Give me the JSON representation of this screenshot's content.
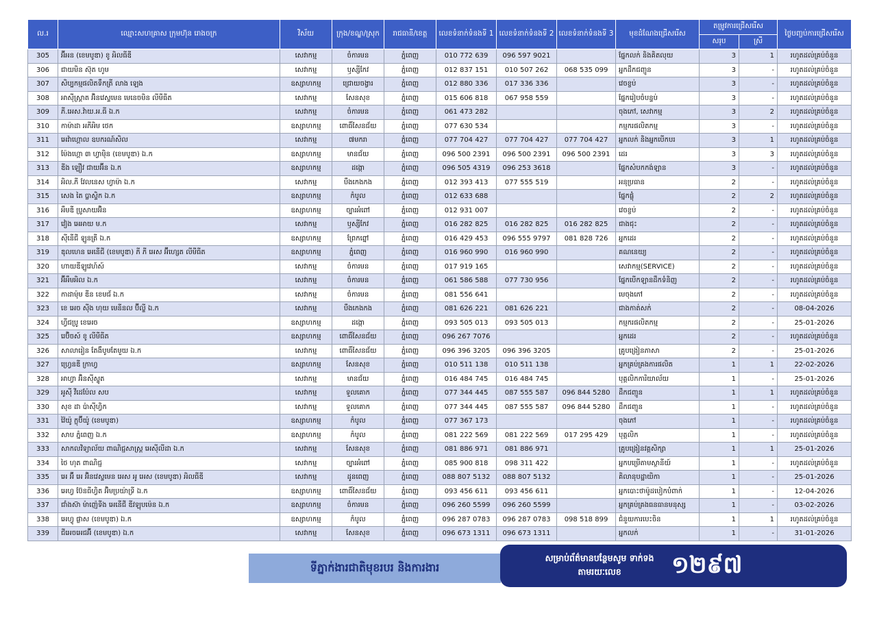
{
  "table": {
    "headers": {
      "no": "ល.រ",
      "name": "ឈ្មោះសហគ្រាស ក្រុមហ៊ុន រោងចក្រ",
      "sector": "វិស័យ",
      "district": "ក្រុង/ខណ្ឌ/ស្រុក",
      "province": "រាជធានី/ខេត្ត",
      "tel1": "លេខទំនាក់ទំនងទី 1",
      "tel2": "លេខទំនាក់ទំនងទី 2",
      "tel3": "លេខទំនាក់ទំនងទី 3",
      "position": "មុខដំណែងជ្រើសរើស",
      "demand": "តម្រូវការជ្រើសរើស",
      "total": "សរុប",
      "female": "ស្រី",
      "deadline": "ថ្ងៃបញ្ចប់ការជ្រើសរើស"
    },
    "rows": [
      [
        305,
        "អ៊ីអន (ខេមបូឌា) ខូ អិលធីឌី",
        "សេវាកម្ម",
        "ចំការមន",
        "ភ្នំពេញ",
        "010 772 639",
        "096 597 9021",
        null,
        "ផ្នែកលក់ និងគិតលុយ",
        3,
        1,
        "រហូតដល់គ្រប់ចំនួន"
      ],
      [
        306,
        "ជាយមិន ស៊ុត ហូម",
        "សេវាកម្ម",
        "ឫស្សីកែវ",
        "ភ្នំពេញ",
        "012 837 151",
        "010 507 262",
        "068 535 099",
        "អ្នកដឹកជញ្ជូន",
        3,
        "-",
        "រហូតដល់គ្រប់ចំនួន"
      ],
      [
        307,
        "សិប្បកម្មផលិតទឹកត្រី លាង ឡេង",
        "ឧស្សាហកម្ម",
        "ជ្រោយចង្វារ",
        "ភ្នំពេញ",
        "012 880 336",
        "017 336 336",
        null,
        "វេចខ្ចប់",
        3,
        "-",
        "រហូតដល់គ្រប់ចំនួន"
      ],
      [
        308,
        "អាស៊ីស្ត្រាត អ៊ិនវេស្ទមេន មេនេចមិន លីមីធីត",
        "សេវាកម្ម",
        "សែនសុខ",
        "ភ្នំពេញ",
        "015 606 818",
        "067 958 559",
        null,
        "ផ្នែករៀបចំបន្ទប់",
        3,
        "-",
        "រហូតដល់គ្រប់ចំនួន"
      ],
      [
        309,
        "ភី.អេស.វ៉ាយ.អ.ធី ឯ.ក",
        "សេវាកម្ម",
        "ចំការមន",
        "ភ្នំពេញ",
        "061 473 282",
        null,
        null,
        "ចុងភៅ, សេវាកម្ម",
        3,
        2,
        "រហូតដល់គ្រប់ចំនួន"
      ],
      [
        310,
        "កាម៉ាដា អភីអិម ថេក",
        "ឧស្សាហកម្ម",
        "ពោធិ៍សែនជ័យ",
        "ភ្នំពេញ",
        "077 630 534",
        null,
        null,
        "កម្មករផលិតកម្ម",
        3,
        "-",
        "រហូតដល់គ្រប់ចំនួន"
      ],
      [
        311,
        "អេវ៉ាហ្គោល ឧបករណ៍សិល",
        "សេវាកម្ម",
        "៧មករា",
        "ភ្នំពេញ",
        "077 704 427",
        "077 704 427",
        "077 704 427",
        "អ្នកលក់ និងអ្នកបើកបរ",
        3,
        1,
        "រហូតដល់គ្រប់ចំនួន"
      ],
      [
        312,
        "ម៉ែងហ្គោ ៣ ហ្វាម៉ិន (ខេមបូឌា) ឯ.ក",
        "ឧស្សាហកម្ម",
        "មានជ័យ",
        "ភ្នំពេញ",
        "096 500 2391",
        "096 500 2391",
        "096 500 2391",
        "ដេរ",
        3,
        3,
        "រហូតដល់គ្រប់ចំនួន"
      ],
      [
        313,
        "ឌីង ឡឿវ ជាយអ៊ីន ឯ.ក",
        "ឧស្សាហកម្ម",
        "ដង្កោ",
        "ភ្នំពេញ",
        "096 505 4319",
        "096 253 3618",
        null,
        "ផ្នែកសំបកកង់ឡាន",
        3,
        "-",
        "រហូតដល់គ្រប់ចំនួន"
      ],
      [
        314,
        "អិល.ភី វែលនេស ហ្វាម៉ា ឯ.ក",
        "សេវាកម្ម",
        "បឹងកេងកង",
        "ភ្នំពេញ",
        "012 393 413",
        "077 555 519",
        null,
        "អនុប្រធាន",
        2,
        "-",
        "រហូតដល់គ្រប់ចំនួន"
      ],
      [
        315,
        "សេង តៃ ប្លាស្ទិក ឯ.ក",
        "ឧស្សាហកម្ម",
        "កំបូល",
        "ភ្នំពេញ",
        "012 633 688",
        null,
        null,
        "ផ្នែកផ្លុំ",
        2,
        2,
        "រហូតដល់គ្រប់ចំនួន"
      ],
      [
        316,
        "អឹមឌី ប្រូសាយអ៊ិន",
        "ឧស្សាហកម្ម",
        "ច្បារអំពៅ",
        "ភ្នំពេញ",
        "012 931 007",
        null,
        null,
        "វេចខ្ចប់",
        2,
        "-",
        "រហូតដល់គ្រប់ចំនួន"
      ],
      [
        317,
        "វៀង អេអាយ ម.ក",
        "សេវាកម្ម",
        "ឫស្សីកែវ",
        "ភ្នំពេញ",
        "016 282 825",
        "016 282 825",
        "016 282 825",
        "ជាងជុះ",
        2,
        "-",
        "រហូតដល់គ្រប់ចំនួន"
      ],
      [
        318,
        "ស៊ីនើជី ឡូនត្រី ឯ.ក",
        "ឧស្សាហកម្ម",
        "ព្រែកព្នៅ",
        "ភ្នំពេញ",
        "016 429 453",
        "096 555 9797",
        "081 828 726",
        "អ្នកដេរ",
        2,
        "-",
        "រហូតដល់គ្រប់ចំនួន"
      ],
      [
        319,
        "ឌុលហេន អេនើជី (ខេមបូឌា) ភី ភី អេស អ៊ីហ្សេត លីមីធីត",
        "ឧស្សាហកម្ម",
        "ភ្នំពេញ",
        "ភ្នំពេញ",
        "016 960 990",
        "016 960 990",
        null,
        "គណនេយ្យ",
        2,
        "-",
        "រហូតដល់គ្រប់ចំនួន"
      ],
      [
        320,
        "ហាយឌីឡូវេហ៍ស៍",
        "សេវាកម្ម",
        "ចំការមន",
        "ភ្នំពេញ",
        "017 919 165",
        null,
        null,
        "សេវាកម្ម(SERVICE)",
        2,
        "-",
        "រហូតដល់គ្រប់ចំនួន"
      ],
      [
        321,
        "អ៊ីអឹមអិល ឯ.ក",
        "សេវាកម្ម",
        "ចំការមន",
        "ភ្នំពេញ",
        "061 586 588",
        "077 730 956",
        null,
        "ផ្នែកបើកឡានដឹកទំនិញ",
        2,
        "-",
        "រហូតដល់គ្រប់ចំនួន"
      ],
      [
        322,
        "កាដាម៉ុម ឌីន ខេមជ័ ឯ.ក",
        "សេវាកម្ម",
        "ចំការមន",
        "ភ្នំពេញ",
        "081 556 641",
        null,
        null,
        "មេចុងភៅ",
        2,
        "-",
        "រហូតដល់គ្រប់ចំនួន"
      ],
      [
        323,
        "ខេ អេច ស៊ីង ហុយ មេនីនល ប៊ីល្ឌី ឯ.ក",
        "សេវាកម្ម",
        "បឹងកេងកង",
        "ភ្នំពេញ",
        "081 626 221",
        "081 626 221",
        null,
        "ជាងកាត់សក់",
        2,
        "-",
        "08-04-2026"
      ],
      [
        324,
        "ហ្វីជប្រូ ខេអេច",
        "ឧស្សាហកម្ម",
        "ដង្កោ",
        "ភ្នំពេញ",
        "093 505 013",
        "093 505 013",
        null,
        "កម្មករផលិតកម្ម",
        2,
        "-",
        "25-01-2026"
      ],
      [
        325,
        "រេប៊ិចស៍ ខូ លីមីធីត",
        "ឧស្សាហកម្ម",
        "ពោធិ៍សែនជ័យ",
        "ភ្នំពេញ",
        "096 267 7076",
        null,
        null,
        "អ្នកដេរ",
        2,
        "-",
        "រហូតដល់គ្រប់ចំនួន"
      ],
      [
        326,
        "សាលារៀន តែងឹបូមតែមួយ ឯ.ក",
        "សេវាកម្ម",
        "ពោធិ៍សែនជ័យ",
        "ភ្នំពេញ",
        "096 396 3205",
        "096 396 3205",
        null,
        "គ្រូបង្រៀនភាសា",
        2,
        "-",
        "25-01-2026"
      ],
      [
        327,
        "ហ្វ្រេនឌី ក្រាហ្វ",
        "ឧស្សាហកម្ម",
        "សែនសុខ",
        "ភ្នំពេញ",
        "010 511 138",
        "010 511 138",
        null,
        "អ្នកគ្រប់គ្រងការផលិត",
        1,
        1,
        "22-02-2026"
      ],
      [
        328,
        "អាហ្វា អ៊ិនស៊ីស្ទូត",
        "សេវាកម្ម",
        "មានជ័យ",
        "ភ្នំពេញ",
        "016 484 745",
        "016 484 745",
        null,
        "បុគ្គលិកការិយាល័យ",
        1,
        "-",
        "25-01-2026"
      ],
      [
        329,
        "អូស៊ី វីដេប៉ែល សប",
        "សេវាកម្ម",
        "ទួលគោក",
        "ភ្នំពេញ",
        "077 344 445",
        "087 555 587",
        "096 844 5280",
        "ដឹកជញ្ជូន",
        1,
        1,
        "រហូតដល់គ្រប់ចំនួន"
      ],
      [
        330,
        "សុខ ដា ប៉ាស៊ីហ្វិក",
        "សេវាកម្ម",
        "ទួលគោក",
        "ភ្នំពេញ",
        "077 344 445",
        "087 555 587",
        "096 844 5280",
        "ដឹកជញ្ជូន",
        1,
        "-",
        "រហូតដល់គ្រប់ចំនួន"
      ],
      [
        331,
        "វ៉ៃយ៉ូ ក្លុប៊ីយ៉ូ (ខេមបូឌា)",
        "ឧស្សាហកម្ម",
        "កំបូល",
        "ភ្នំពេញ",
        "077 367 173",
        null,
        null,
        "ចុងភៅ",
        1,
        "-",
        "រហូតដល់គ្រប់ចំនួន"
      ],
      [
        332,
        "សាប ភ្នំពេញ ឯ.ក",
        "ឧស្សាហកម្ម",
        "កំបូល",
        "ភ្នំពេញ",
        "081 222 569",
        "081 222 569",
        "017 295 429",
        "បុគ្គលិក",
        1,
        "-",
        "រហូតដល់គ្រប់ចំនួន"
      ],
      [
        333,
        "សាកលវិទ្យាល័យ ពាណិជ្ជសាស្ត្រ អេស៊ីលីដា ឯ.ក",
        "សេវាកម្ម",
        "សែនសុខ",
        "ភ្នំពេញ",
        "081 886 971",
        "081 886 971",
        null,
        "គ្រូបង្រៀនវគ្គសិក្សា",
        1,
        1,
        "25-01-2026"
      ],
      [
        334,
        "ថៃ ហុត ពាណិជ្ជ",
        "សេវាកម្ម",
        "ច្បារអំពៅ",
        "ភ្នំពេញ",
        "085 900 818",
        "098 311 422",
        null,
        "អ្នកបម្រើតាមស្ថានីយ៍",
        1,
        "-",
        "រហូតដល់គ្រប់ចំនួន"
      ],
      [
        335,
        "អេ អ៊ី អេ អ៊ិនវេស្ទមេន អេស អូ អេស (ខេមបូឌា) អិលធីឌី",
        "សេវាកម្ម",
        "ដូនពេញ",
        "ភ្នំពេញ",
        "088 807 5132",
        "088 807 5132",
        null,
        "គិលានុបដ្ឋាយិកា",
        1,
        "-",
        "25-01-2026"
      ],
      [
        336,
        "អេហ្វ ប៊ែនធីហ្វិត អ៊ិមប្រយ៉ាទ្រី ឯ.ក",
        "ឧស្សាហកម្ម",
        "ពោធិ៍សែនជ័យ",
        "ភ្នំពេញ",
        "093 456 611",
        "093 456 611",
        null,
        "អ្នកបោះថាម៉ូដបៀកបំពាក់",
        1,
        "-",
        "12-04-2026"
      ],
      [
        337,
        "ជាំងស៊ា ម៉ាញ៉េទីង អេនើជី ឌីវឡុបម៉េន ឯ.ក",
        "ឧស្សាហកម្ម",
        "ចំការមន",
        "ភ្នំពេញ",
        "096 260 5599",
        "096 260 5599",
        null,
        "អ្នកគ្រប់គ្រងធនធានមនុស្ស",
        1,
        "-",
        "03-02-2026"
      ],
      [
        338,
        "អេហ្វូ ផ្លាស (ខេមបូឌា) ឯ.ក",
        "ឧស្សាហកម្ម",
        "កំបូល",
        "ភ្នំពេញ",
        "096 287 0783",
        "096 287 0783",
        "098 518 899",
        "ជំនួយការបេះចិន",
        1,
        1,
        "រហូតដល់គ្រប់ចំនួន"
      ],
      [
        339,
        "ជីអេចអេជអ៊ី (ខេមបូឌា) ឯ.ក",
        "សេវាកម្ម",
        "សែនសុខ",
        "ភ្នំពេញ",
        "096 673 1311",
        "096 673 1311",
        null,
        "អ្នកលក់",
        1,
        "-",
        "31-01-2026"
      ]
    ]
  },
  "footer": {
    "agency": "ទីភ្នាក់ងារជាតិមុខរបរ និងការងារ",
    "contact": "សម្រាប់ព័ត៌មានបន្ថែមសូម ទាក់ទងតាមរយៈលេខ",
    "hotline": "១២៩៧"
  }
}
